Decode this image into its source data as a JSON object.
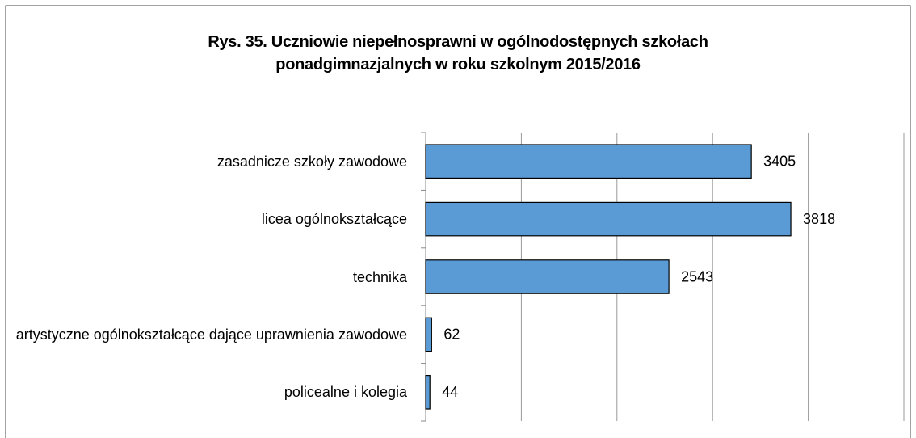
{
  "chart_data": {
    "type": "bar",
    "orientation": "horizontal",
    "title": "Rys. 35. Uczniowie niepełnosprawni w ogólnodostępnych szkołach\nponadgimnazjalnych w roku szkolnym 2015/2016",
    "categories": [
      "zasadnicze szkoły zawodowe",
      "licea ogólnokształcące",
      "technika",
      "artystyczne ogólnokształcące dające uprawnienia zawodowe",
      "policealne i kolegia"
    ],
    "values": [
      3405,
      3818,
      2543,
      62,
      44
    ],
    "color": "#5b9bd5",
    "xlim": [
      0,
      5000
    ],
    "xticks": [
      0,
      1000,
      2000,
      3000,
      4000,
      5000
    ],
    "grid": true
  }
}
